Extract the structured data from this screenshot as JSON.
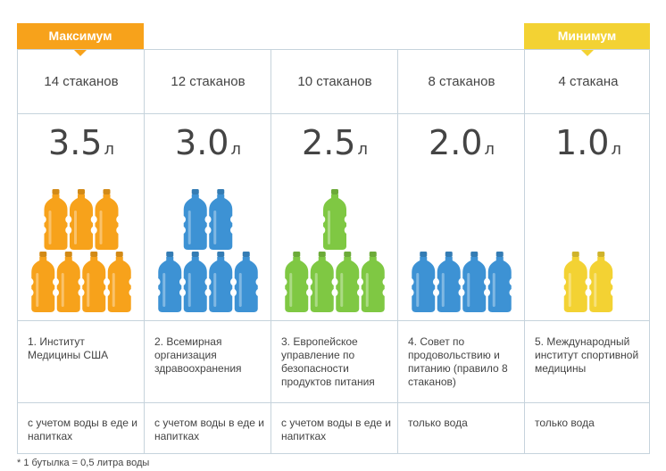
{
  "badges": {
    "max": "Максимум",
    "min": "Минимум"
  },
  "columns": [
    {
      "glasses": "14 стаканов",
      "volume": "3.5",
      "unit": "л",
      "bottle_count": 7,
      "layout": [
        3,
        4
      ],
      "color": "#f7a21b",
      "source": "1. Институт Медицины США",
      "note": "с учетом воды в еде и напитках"
    },
    {
      "glasses": "12 стаканов",
      "volume": "3.0",
      "unit": "л",
      "bottle_count": 6,
      "layout": [
        2,
        4
      ],
      "color": "#3d92d4",
      "source": "2. Всемирная организация здравоохранения",
      "note": "с учетом воды в еде и напитках"
    },
    {
      "glasses": "10 стаканов",
      "volume": "2.5",
      "unit": "л",
      "bottle_count": 5,
      "layout": [
        1,
        4
      ],
      "color": "#7fc843",
      "source": "3. Европейское управление по безопасности продуктов питания",
      "note": "с учетом воды в еде и напитках"
    },
    {
      "glasses": "8 стаканов",
      "volume": "2.0",
      "unit": "л",
      "bottle_count": 4,
      "layout": [
        0,
        4
      ],
      "color": "#3d92d4",
      "source": "4. Совет по продовольствию и питанию (правило 8 стаканов)",
      "note": "только вода"
    },
    {
      "glasses": "4 стакана",
      "volume": "1.0",
      "unit": "л",
      "bottle_count": 2,
      "layout": [
        0,
        2
      ],
      "color": "#f3d233",
      "source": "5. Международный институт спортивной медицины",
      "note": "только вода"
    }
  ],
  "footnote": "* 1 бутылка = 0,5 литра воды"
}
